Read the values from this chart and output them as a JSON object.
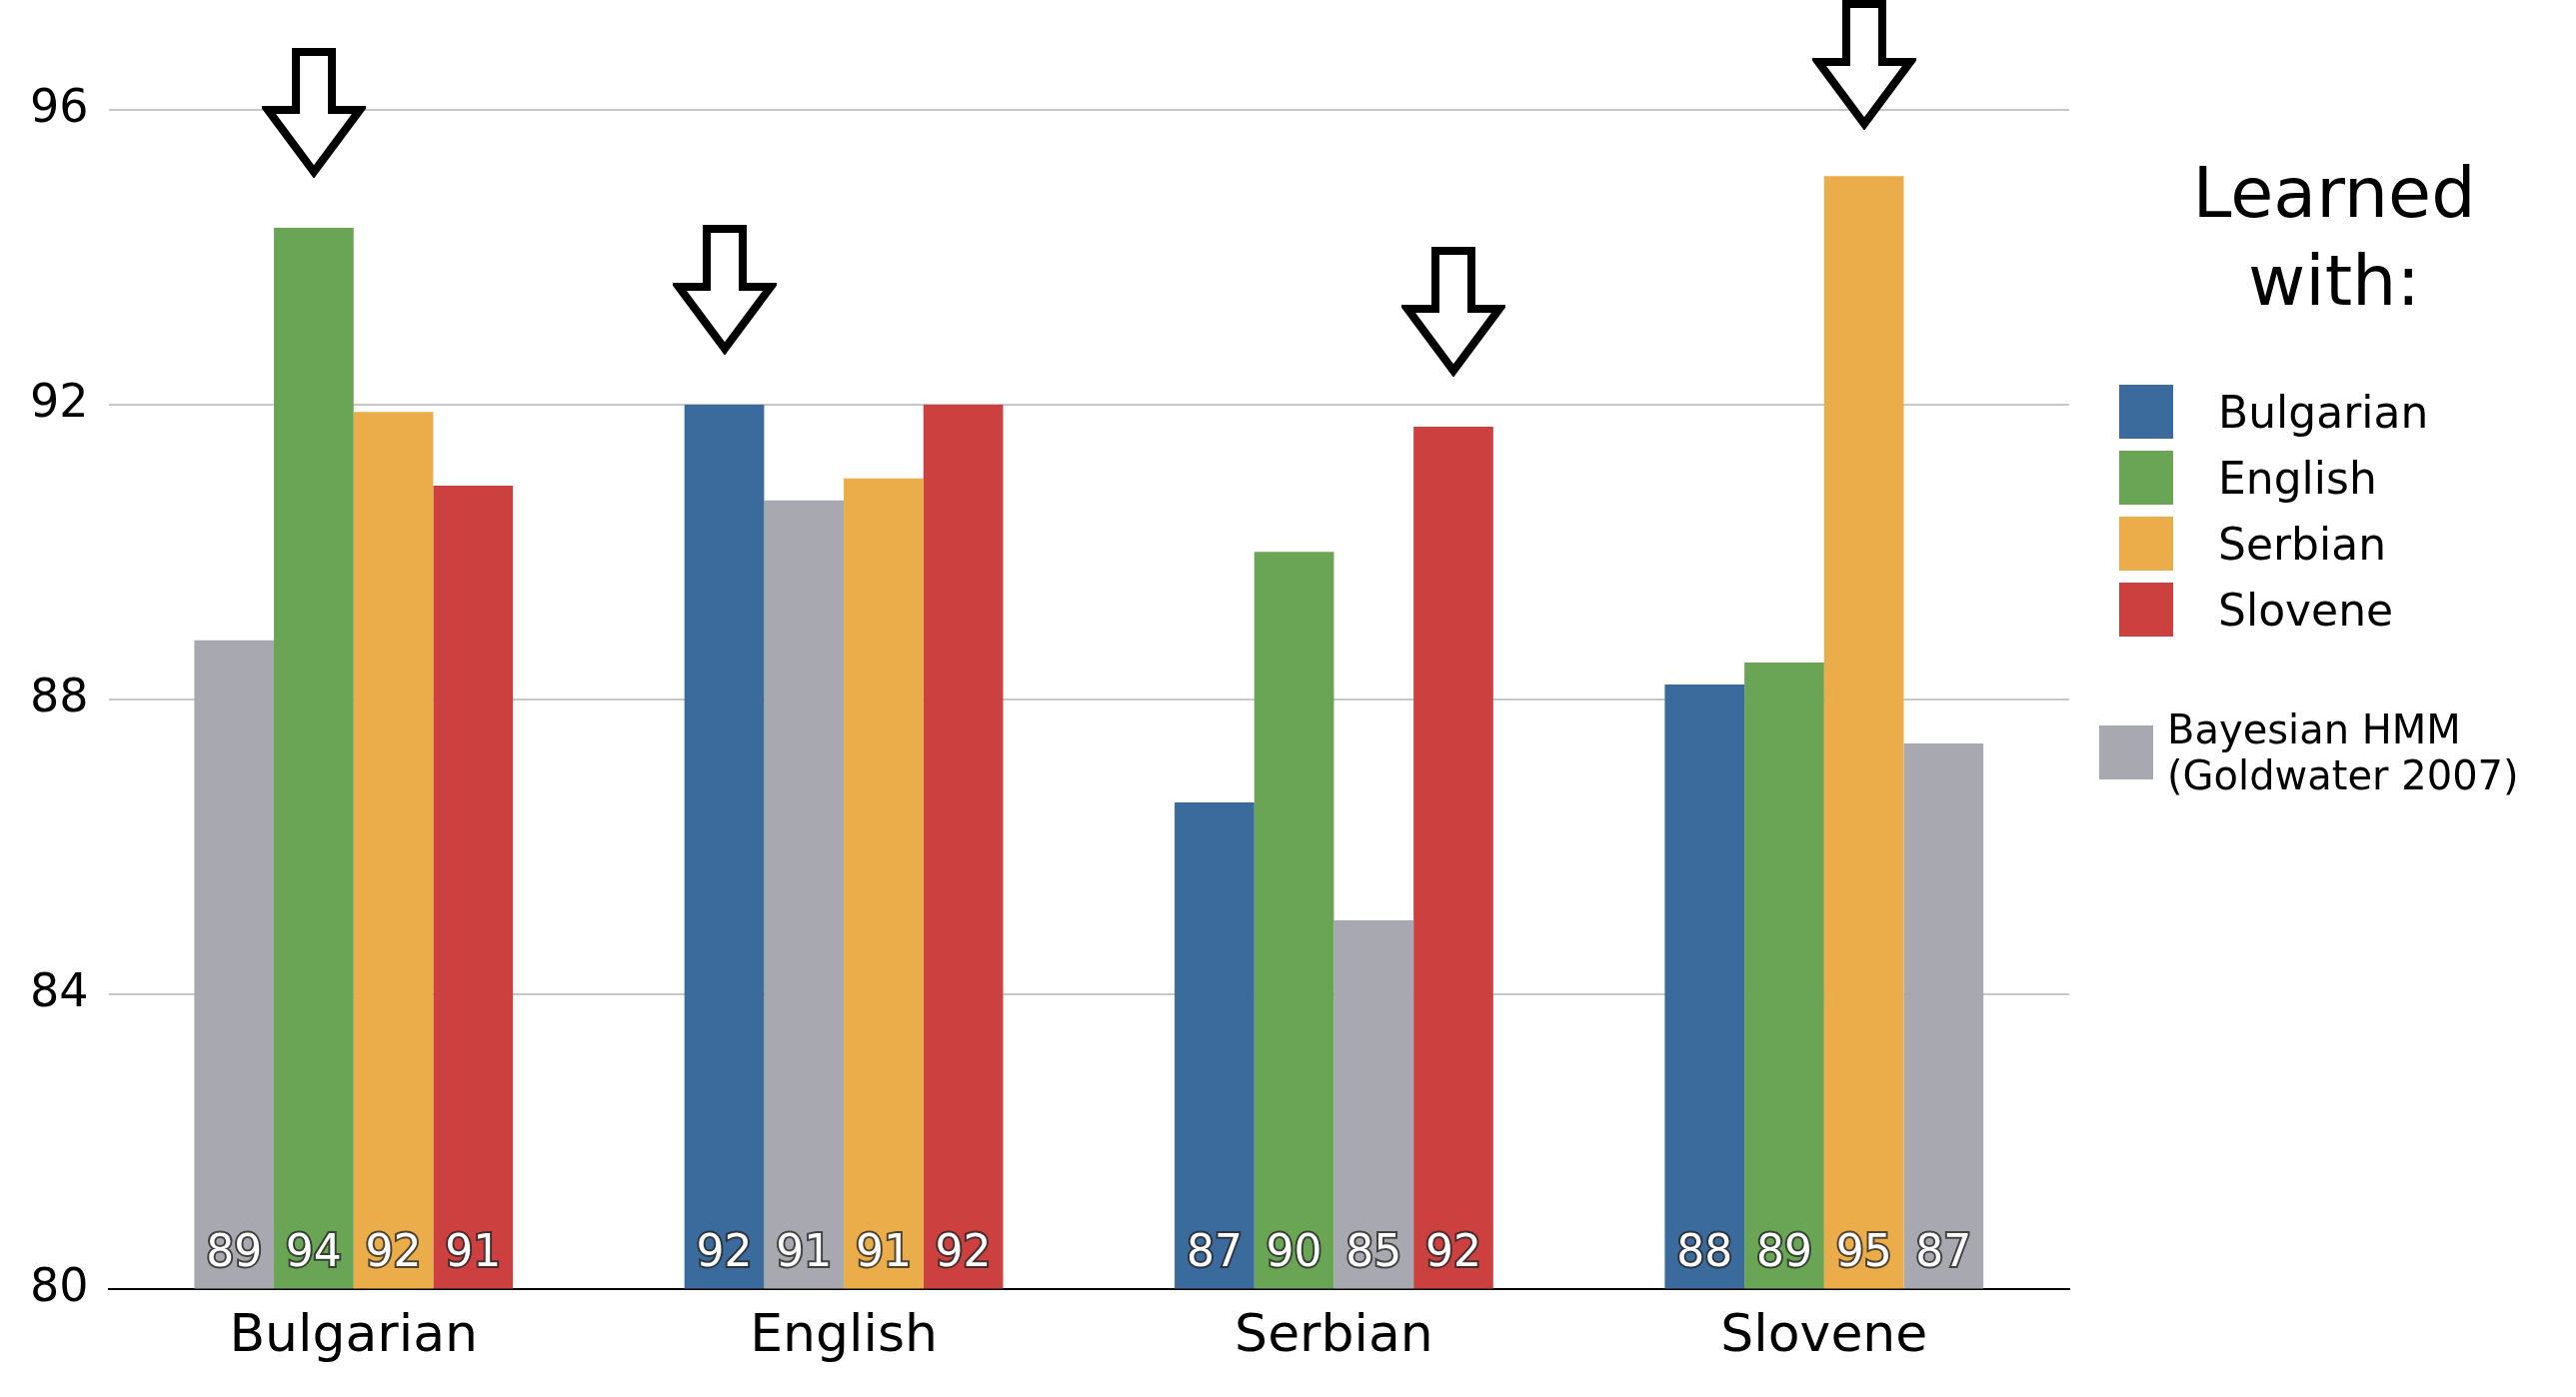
{
  "chart_data": {
    "type": "bar",
    "categories": [
      "Bulgarian",
      "English",
      "Serbian",
      "Slovene"
    ],
    "series": [
      {
        "name": "Bulgarian",
        "color": "#3b6a9c",
        "values": [
          null,
          92.0,
          86.6,
          88.2
        ],
        "value_labels": [
          null,
          "92",
          "87",
          "88"
        ]
      },
      {
        "name": "English",
        "color": "#6aa556",
        "values": [
          94.4,
          null,
          90.0,
          88.5
        ],
        "value_labels": [
          "94",
          null,
          "90",
          "89"
        ]
      },
      {
        "name": "Serbian",
        "color": "#ebad4a",
        "values": [
          91.9,
          91.0,
          null,
          95.1
        ],
        "value_labels": [
          "92",
          "91",
          null,
          "95"
        ]
      },
      {
        "name": "Slovene",
        "color": "#cc4040",
        "values": [
          90.9,
          92.0,
          91.7,
          null
        ],
        "value_labels": [
          "91",
          "92",
          "92",
          null
        ]
      },
      {
        "name": "Bayesian HMM (Goldwater 2007)",
        "color": "#a8a8b0",
        "values": [
          88.8,
          90.7,
          85.0,
          87.4
        ],
        "value_labels": [
          "89",
          "91",
          "85",
          "87"
        ]
      }
    ],
    "ylim": [
      80,
      96
    ],
    "yticks": [
      80,
      84,
      88,
      92,
      96
    ],
    "grid": "y",
    "legend": "right",
    "legend_title": "Learned with:"
  }
}
